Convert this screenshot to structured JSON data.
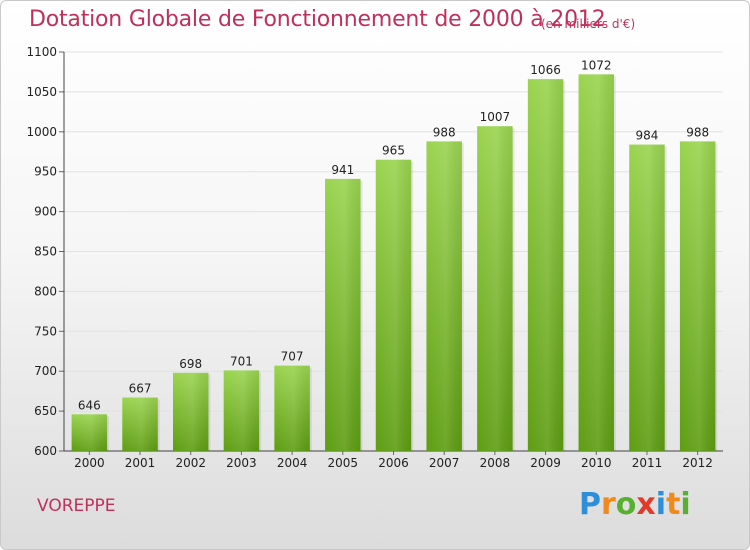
{
  "header": {
    "title": "Dotation Globale de Fonctionnement de 2000 à 2012",
    "unit": "(en milliers d'€)"
  },
  "commune": "VOREPPE",
  "logo": {
    "text": "Proxiti",
    "letter_colors": [
      "#2e8fd8",
      "#f08a1c",
      "#58b030",
      "#e23a2a",
      "#2e8fd8",
      "#f08a1c",
      "#58b030"
    ]
  },
  "colors": {
    "bar_top": "#9ad450",
    "bar_bottom": "#5e9d12",
    "title": "#c0305a"
  },
  "chart_data": {
    "type": "bar",
    "title": "Dotation Globale de Fonctionnement de 2000 à 2012",
    "subtitle": "(en milliers d'€)",
    "categories": [
      "2000",
      "2001",
      "2002",
      "2003",
      "2004",
      "2005",
      "2006",
      "2007",
      "2008",
      "2009",
      "2010",
      "2011",
      "2012"
    ],
    "values": [
      646,
      667,
      698,
      701,
      707,
      941,
      965,
      988,
      1007,
      1066,
      1072,
      984,
      988
    ],
    "ylim": [
      600,
      1100
    ],
    "yticks": [
      600,
      650,
      700,
      750,
      800,
      850,
      900,
      950,
      1000,
      1050,
      1100
    ],
    "grid": true,
    "legend": "none"
  }
}
